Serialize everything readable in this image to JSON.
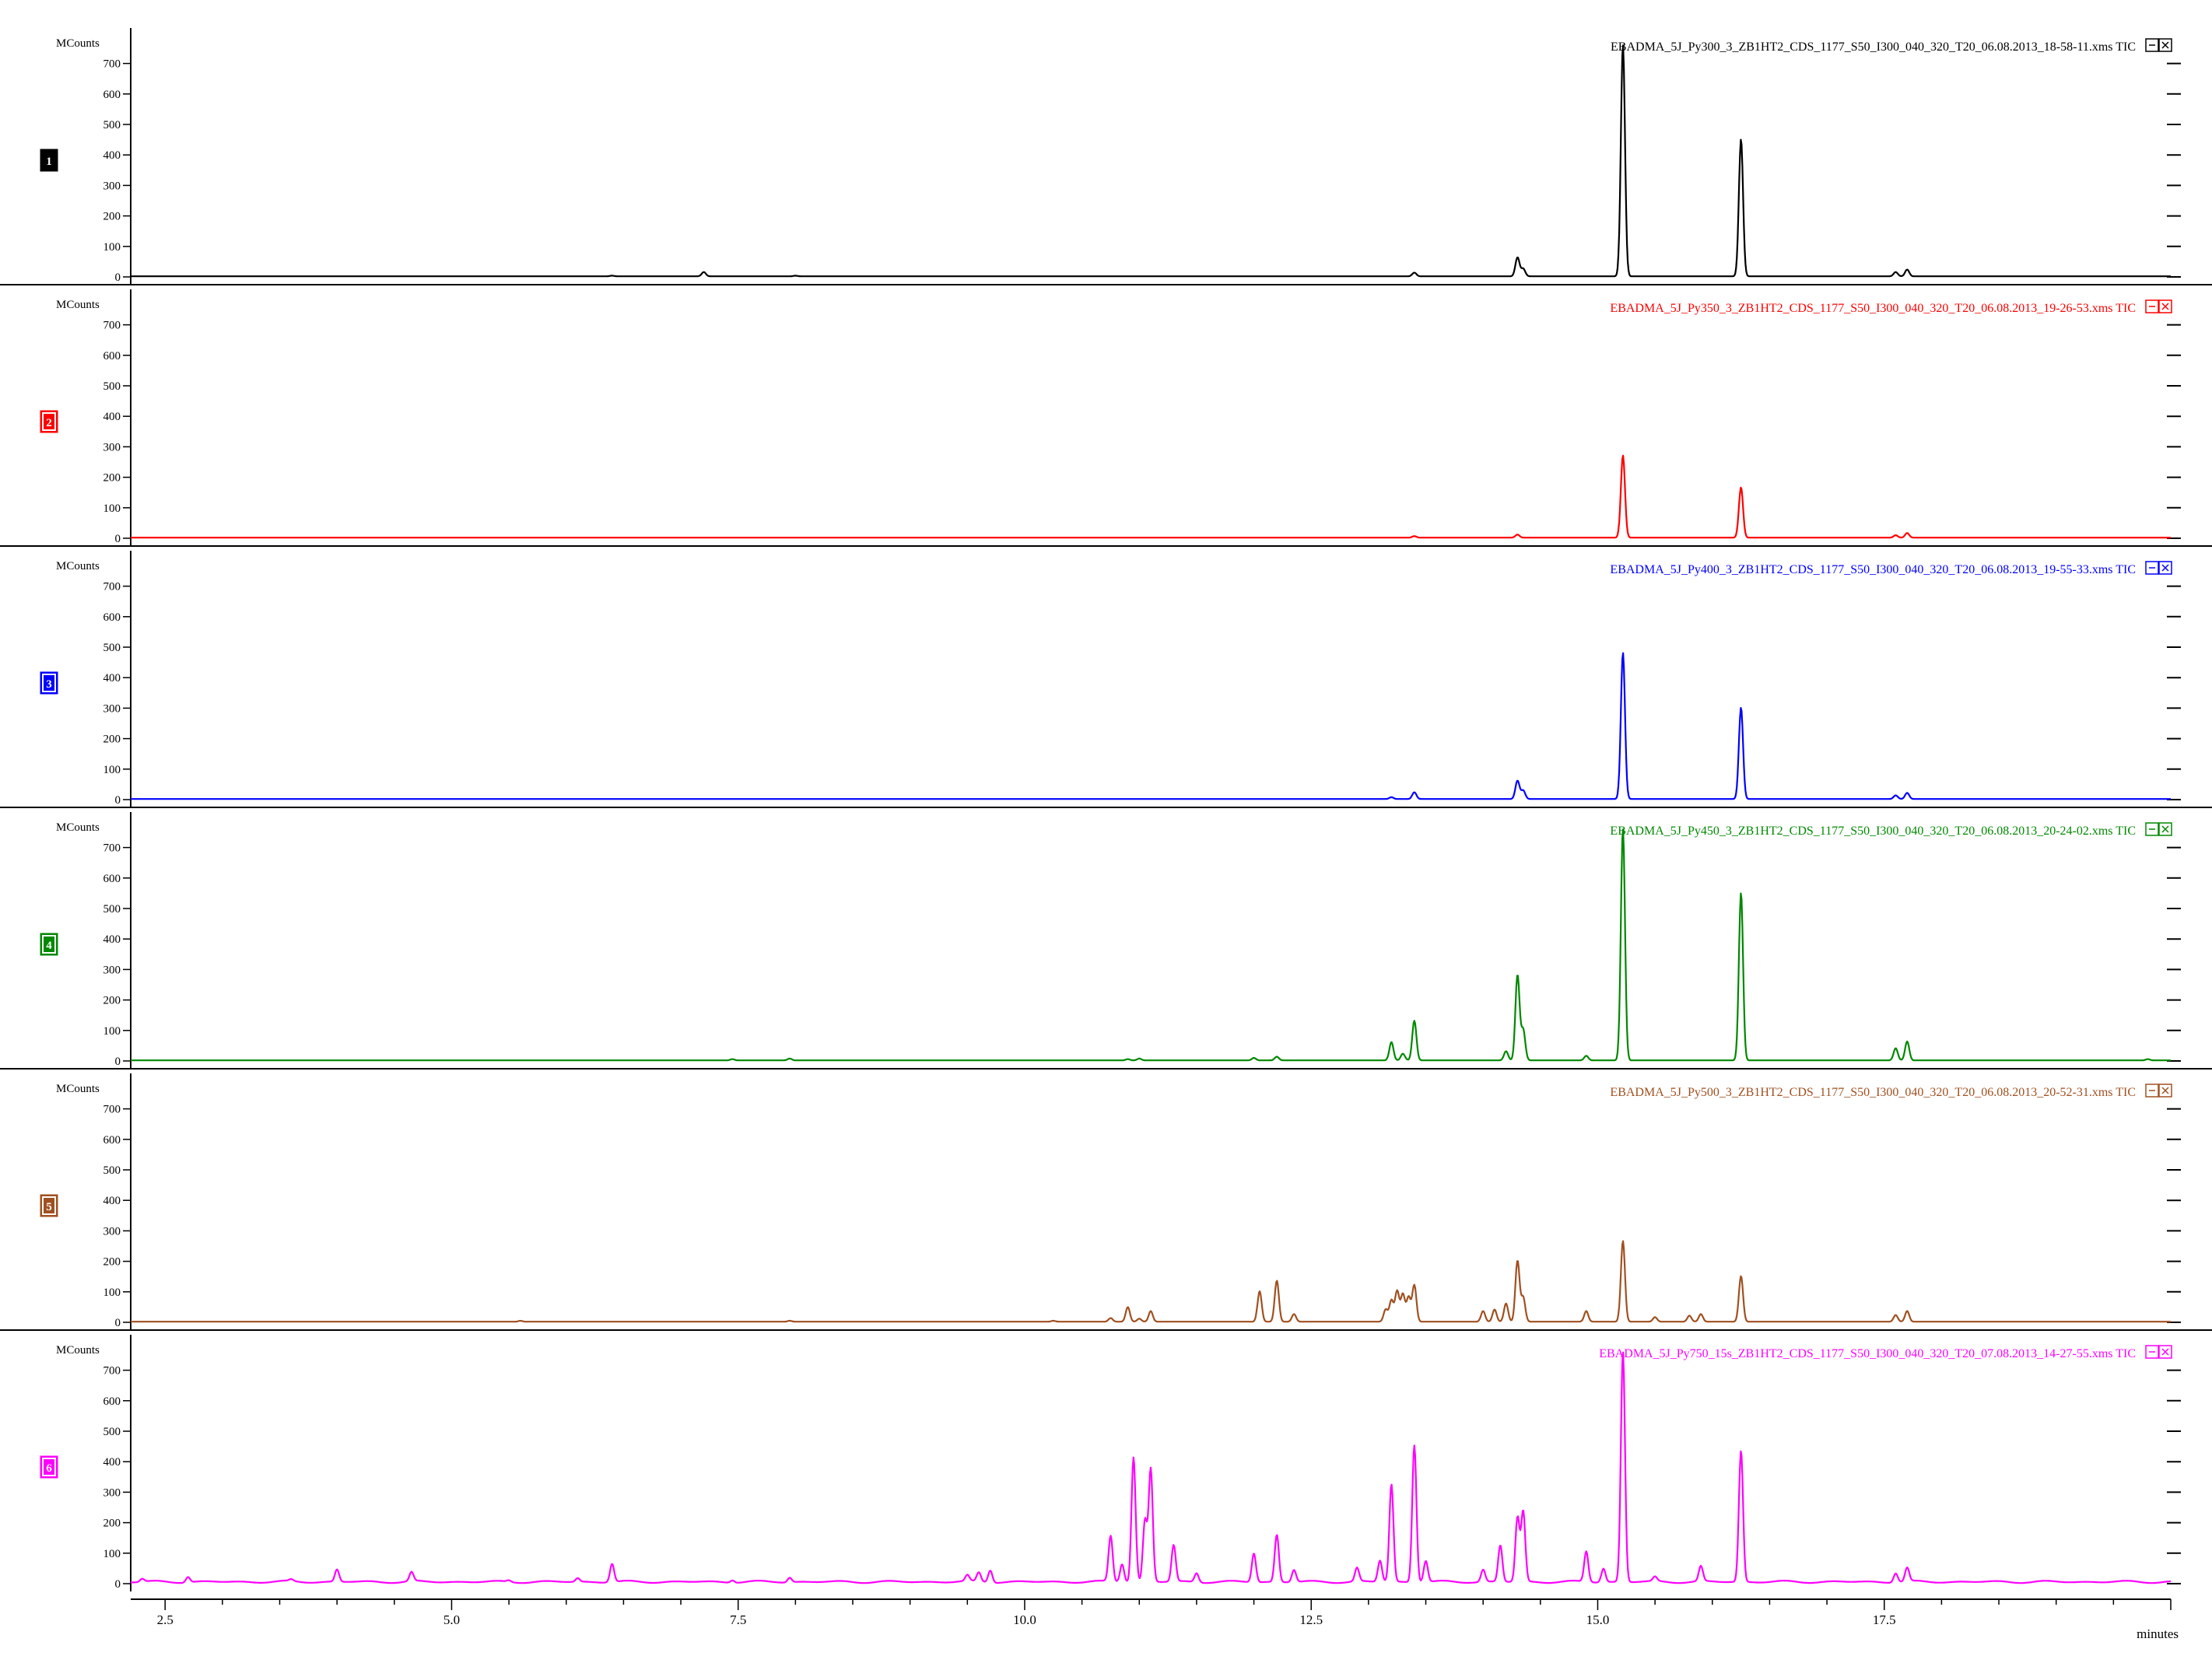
{
  "chart_data": {
    "type": "line",
    "x_unit_label": "minutes",
    "y_unit_label": "MCounts",
    "xlim": [
      2.2,
      20.0
    ],
    "x_ticks": [
      "2.5",
      "5.0",
      "7.5",
      "10.0",
      "12.5",
      "15.0",
      "17.5"
    ],
    "ylim": [
      0,
      750
    ],
    "y_ticks": [
      "700",
      "600",
      "500",
      "400",
      "300",
      "200",
      "100",
      "0"
    ],
    "panels": [
      {
        "index": "1",
        "color": "#000000",
        "title": "EBADMA_5J_Py300_3_ZB1HT2_CDS_1177_S50_I300_040_320_T20_06.08.2013_18-58-11.xms TIC",
        "peaks": [
          [
            6.4,
            2
          ],
          [
            7.2,
            14
          ],
          [
            8.0,
            2
          ],
          [
            13.4,
            12
          ],
          [
            14.3,
            62
          ],
          [
            14.35,
            25
          ],
          [
            15.22,
            760
          ],
          [
            16.25,
            450
          ],
          [
            17.6,
            14
          ],
          [
            17.7,
            22
          ]
        ]
      },
      {
        "index": "2",
        "color": "#ff0000",
        "title": "EBADMA_5J_Py350_3_ZB1HT2_CDS_1177_S50_I300_040_320_T20_06.08.2013_19-26-53.xms TIC",
        "peaks": [
          [
            13.4,
            5
          ],
          [
            14.3,
            10
          ],
          [
            15.22,
            270
          ],
          [
            16.25,
            165
          ],
          [
            17.6,
            8
          ],
          [
            17.7,
            15
          ]
        ]
      },
      {
        "index": "3",
        "color": "#0000ff",
        "title": "EBADMA_5J_Py400_3_ZB1HT2_CDS_1177_S50_I300_040_320_T20_06.08.2013_19-55-33.xms TIC",
        "peaks": [
          [
            13.2,
            6
          ],
          [
            13.4,
            22
          ],
          [
            14.3,
            60
          ],
          [
            14.35,
            28
          ],
          [
            15.22,
            480
          ],
          [
            16.25,
            300
          ],
          [
            17.6,
            12
          ],
          [
            17.7,
            20
          ]
        ]
      },
      {
        "index": "4",
        "color": "#008800",
        "title": "EBADMA_5J_Py450_3_ZB1HT2_CDS_1177_S50_I300_040_320_T20_06.08.2013_20-24-02.xms TIC",
        "peaks": [
          [
            7.45,
            4
          ],
          [
            7.95,
            6
          ],
          [
            10.9,
            4
          ],
          [
            11.0,
            6
          ],
          [
            12.0,
            8
          ],
          [
            12.2,
            12
          ],
          [
            13.2,
            60
          ],
          [
            13.3,
            22
          ],
          [
            13.4,
            130
          ],
          [
            14.2,
            30
          ],
          [
            14.3,
            280
          ],
          [
            14.35,
            100
          ],
          [
            14.9,
            15
          ],
          [
            15.22,
            760
          ],
          [
            16.25,
            550
          ],
          [
            17.6,
            40
          ],
          [
            17.7,
            62
          ],
          [
            19.8,
            4
          ]
        ]
      },
      {
        "index": "5",
        "color": "#a05020",
        "title": "EBADMA_5J_Py500_3_ZB1HT2_CDS_1177_S50_I300_040_320_T20_06.08.2013_20-52-31.xms TIC",
        "peaks": [
          [
            5.6,
            3
          ],
          [
            7.95,
            3
          ],
          [
            10.25,
            3
          ],
          [
            10.75,
            12
          ],
          [
            10.9,
            48
          ],
          [
            11.0,
            10
          ],
          [
            11.1,
            35
          ],
          [
            12.05,
            100
          ],
          [
            12.2,
            135
          ],
          [
            12.35,
            25
          ],
          [
            13.15,
            40
          ],
          [
            13.2,
            70
          ],
          [
            13.25,
            100
          ],
          [
            13.3,
            90
          ],
          [
            13.35,
            80
          ],
          [
            13.4,
            120
          ],
          [
            14.0,
            35
          ],
          [
            14.1,
            40
          ],
          [
            14.2,
            60
          ],
          [
            14.3,
            200
          ],
          [
            14.35,
            80
          ],
          [
            14.9,
            35
          ],
          [
            15.22,
            265
          ],
          [
            15.5,
            15
          ],
          [
            15.8,
            20
          ],
          [
            15.9,
            25
          ],
          [
            16.25,
            150
          ],
          [
            17.6,
            22
          ],
          [
            17.7,
            35
          ]
        ]
      },
      {
        "index": "6",
        "color": "#ff00ff",
        "title": "EBADMA_5J_Py750_15s_ZB1HT2_CDS_1177_S50_I300_040_320_T20_07.08.2013_14-27-55.xms TIC",
        "peaks": [
          [
            2.3,
            10
          ],
          [
            2.7,
            18
          ],
          [
            3.6,
            6
          ],
          [
            4.0,
            40
          ],
          [
            4.65,
            30
          ],
          [
            5.5,
            5
          ],
          [
            6.1,
            12
          ],
          [
            6.4,
            60
          ],
          [
            7.45,
            8
          ],
          [
            7.95,
            15
          ],
          [
            9.5,
            20
          ],
          [
            9.6,
            30
          ],
          [
            9.7,
            40
          ],
          [
            10.75,
            150
          ],
          [
            10.85,
            60
          ],
          [
            10.95,
            410
          ],
          [
            11.05,
            200
          ],
          [
            11.1,
            370
          ],
          [
            11.3,
            120
          ],
          [
            11.5,
            30
          ],
          [
            12.0,
            95
          ],
          [
            12.2,
            155
          ],
          [
            12.35,
            40
          ],
          [
            12.9,
            45
          ],
          [
            13.1,
            70
          ],
          [
            13.2,
            320
          ],
          [
            13.4,
            450
          ],
          [
            13.5,
            70
          ],
          [
            14.0,
            40
          ],
          [
            14.15,
            120
          ],
          [
            14.3,
            210
          ],
          [
            14.35,
            230
          ],
          [
            14.9,
            100
          ],
          [
            15.05,
            45
          ],
          [
            15.22,
            755
          ],
          [
            15.5,
            15
          ],
          [
            15.9,
            50
          ],
          [
            16.25,
            430
          ],
          [
            17.6,
            30
          ],
          [
            17.7,
            45
          ]
        ]
      }
    ]
  }
}
